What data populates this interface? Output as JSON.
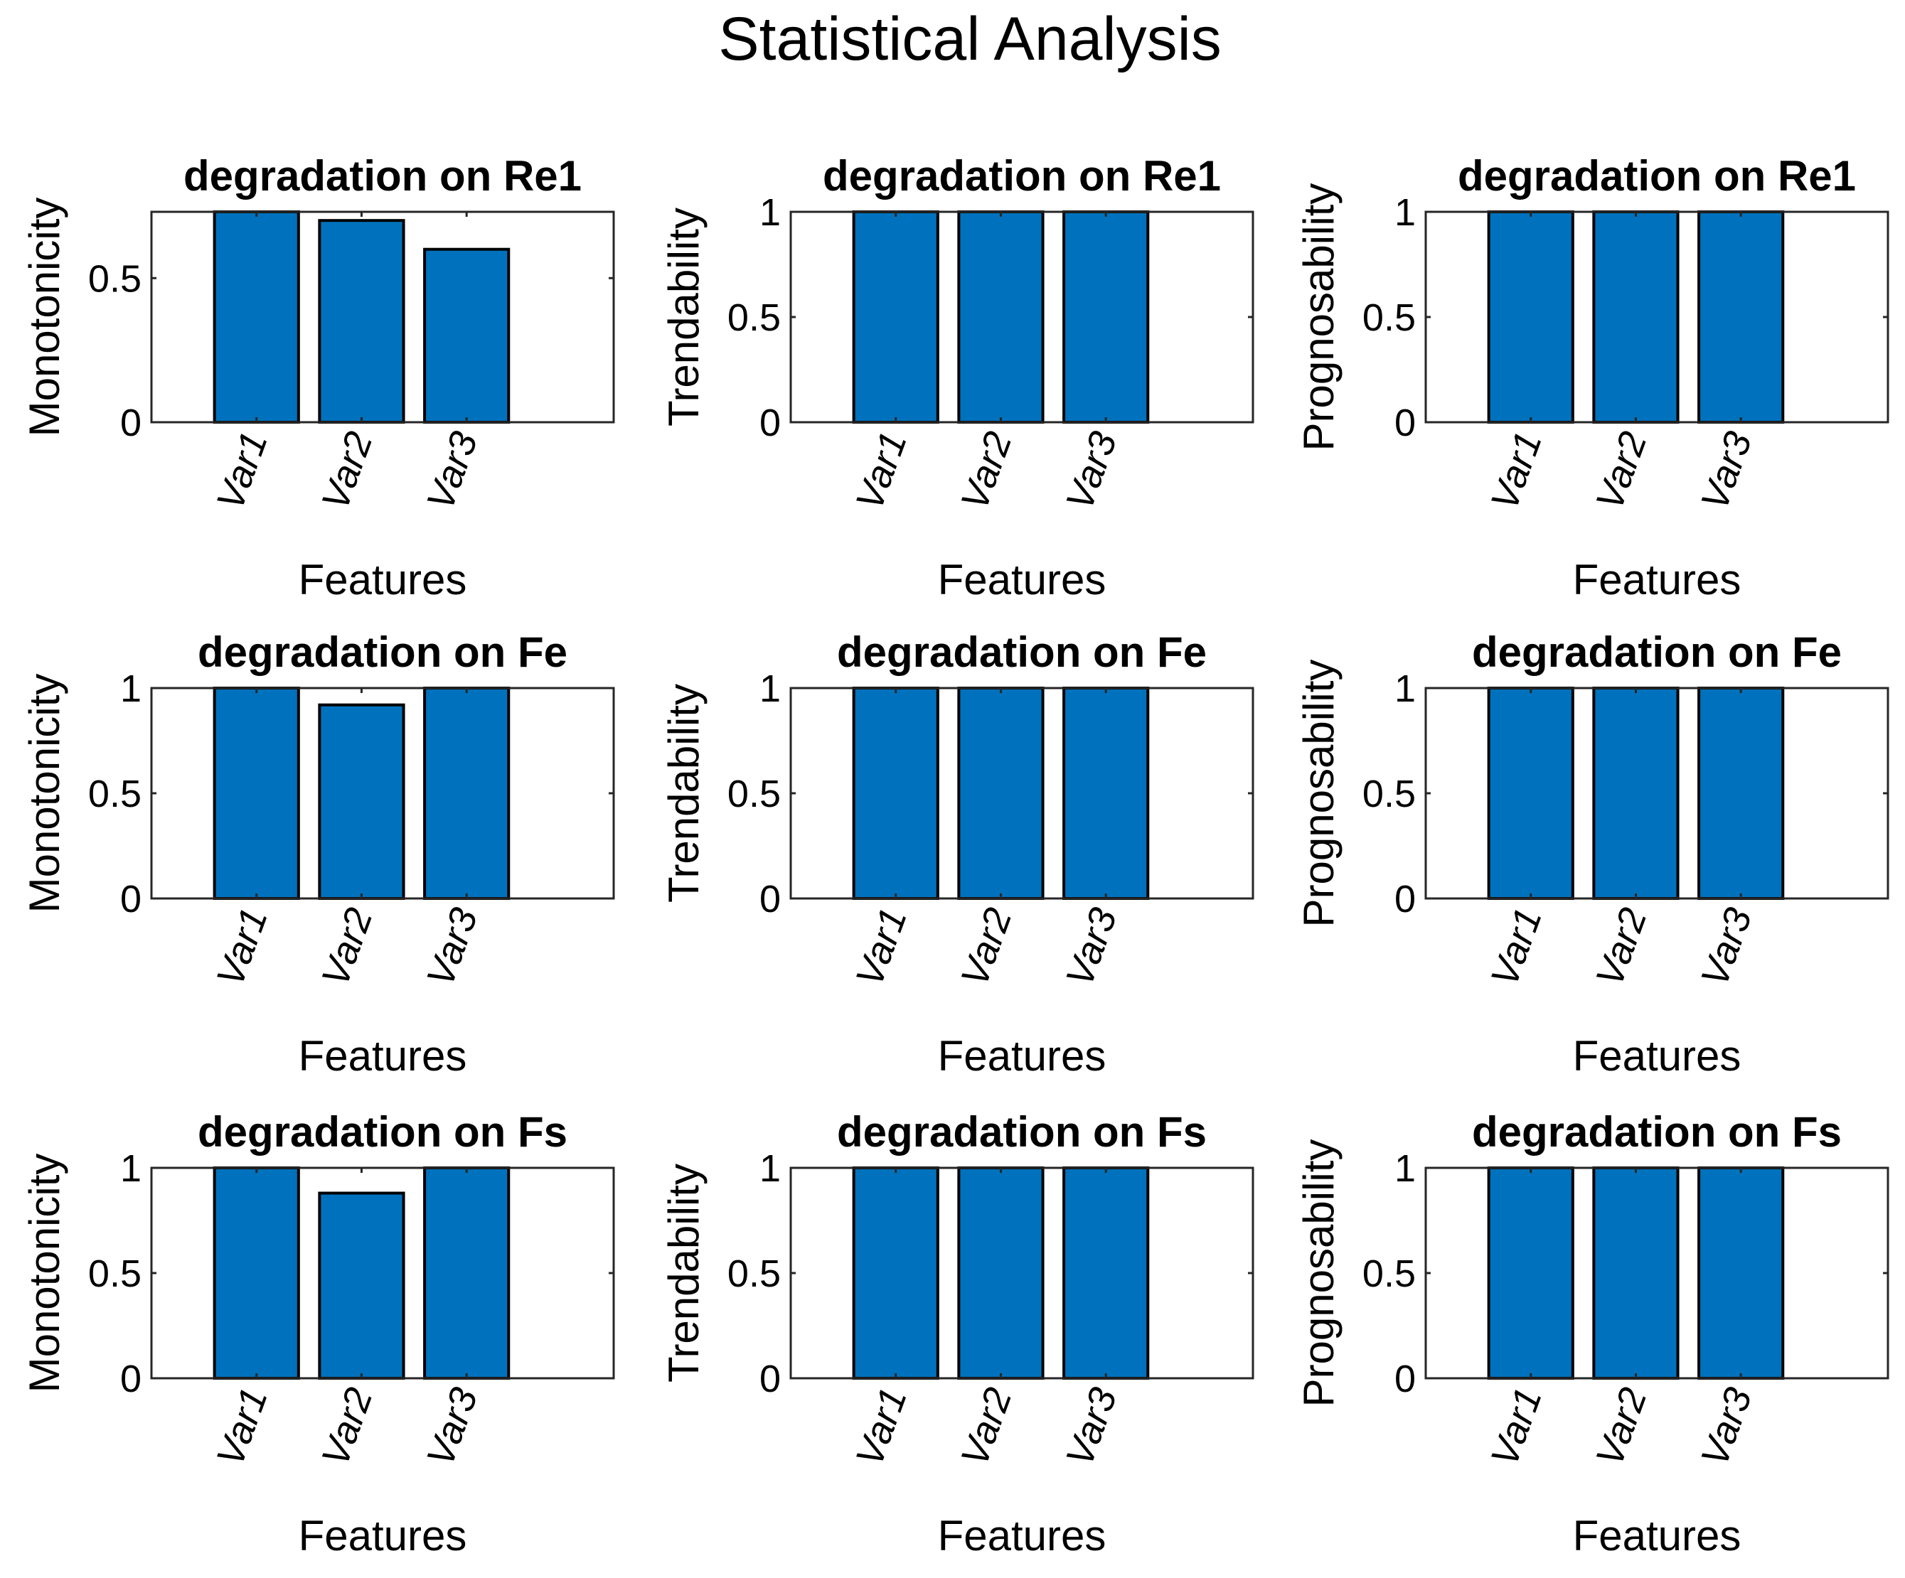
{
  "colors": {
    "bar": "#0072BD",
    "axis": "#262626",
    "edge": "#000000"
  },
  "chart_data": {
    "type": "bar",
    "title": "Statistical Analysis",
    "subplots": [
      {
        "title": "degradation on Re1",
        "xlabel": "Features",
        "ylabel": "Monotonicity",
        "categories": [
          "Var1",
          "Var2",
          "Var3"
        ],
        "values": [
          0.73,
          0.7,
          0.6
        ],
        "ylim": [
          0,
          0.73
        ],
        "yticks": [
          0,
          0.5
        ],
        "ytick_labels": [
          "0",
          "0.5"
        ]
      },
      {
        "title": "degradation on Re1",
        "xlabel": "Features",
        "ylabel": "Trendability",
        "categories": [
          "Var1",
          "Var2",
          "Var3"
        ],
        "values": [
          1,
          1,
          1
        ],
        "ylim": [
          0,
          1
        ],
        "yticks": [
          0,
          0.5,
          1
        ],
        "ytick_labels": [
          "0",
          "0.5",
          "1"
        ]
      },
      {
        "title": "degradation on Re1",
        "xlabel": "Features",
        "ylabel": "Prognosability",
        "categories": [
          "Var1",
          "Var2",
          "Var3"
        ],
        "values": [
          1,
          1,
          1
        ],
        "ylim": [
          0,
          1
        ],
        "yticks": [
          0,
          0.5,
          1
        ],
        "ytick_labels": [
          "0",
          "0.5",
          "1"
        ]
      },
      {
        "title": "degradation on Fe",
        "xlabel": "Features",
        "ylabel": "Monotonicity",
        "categories": [
          "Var1",
          "Var2",
          "Var3"
        ],
        "values": [
          1,
          0.92,
          1
        ],
        "ylim": [
          0,
          1
        ],
        "yticks": [
          0,
          0.5,
          1
        ],
        "ytick_labels": [
          "0",
          "0.5",
          "1"
        ]
      },
      {
        "title": "degradation on Fe",
        "xlabel": "Features",
        "ylabel": "Trendability",
        "categories": [
          "Var1",
          "Var2",
          "Var3"
        ],
        "values": [
          1,
          1,
          1
        ],
        "ylim": [
          0,
          1
        ],
        "yticks": [
          0,
          0.5,
          1
        ],
        "ytick_labels": [
          "0",
          "0.5",
          "1"
        ]
      },
      {
        "title": "degradation on Fe",
        "xlabel": "Features",
        "ylabel": "Prognosability",
        "categories": [
          "Var1",
          "Var2",
          "Var3"
        ],
        "values": [
          1,
          1,
          1
        ],
        "ylim": [
          0,
          1
        ],
        "yticks": [
          0,
          0.5,
          1
        ],
        "ytick_labels": [
          "0",
          "0.5",
          "1"
        ]
      },
      {
        "title": "degradation on Fs",
        "xlabel": "Features",
        "ylabel": "Monotonicity",
        "categories": [
          "Var1",
          "Var2",
          "Var3"
        ],
        "values": [
          1,
          0.88,
          1
        ],
        "ylim": [
          0,
          1
        ],
        "yticks": [
          0,
          0.5,
          1
        ],
        "ytick_labels": [
          "0",
          "0.5",
          "1"
        ]
      },
      {
        "title": "degradation on Fs",
        "xlabel": "Features",
        "ylabel": "Trendability",
        "categories": [
          "Var1",
          "Var2",
          "Var3"
        ],
        "values": [
          1,
          1,
          1
        ],
        "ylim": [
          0,
          1
        ],
        "yticks": [
          0,
          0.5,
          1
        ],
        "ytick_labels": [
          "0",
          "0.5",
          "1"
        ]
      },
      {
        "title": "degradation on Fs",
        "xlabel": "Features",
        "ylabel": "Prognosability",
        "categories": [
          "Var1",
          "Var2",
          "Var3"
        ],
        "values": [
          1,
          1,
          1
        ],
        "ylim": [
          0,
          1
        ],
        "yticks": [
          0,
          0.5,
          1
        ],
        "ytick_labels": [
          "0",
          "0.5",
          "1"
        ]
      }
    ]
  }
}
